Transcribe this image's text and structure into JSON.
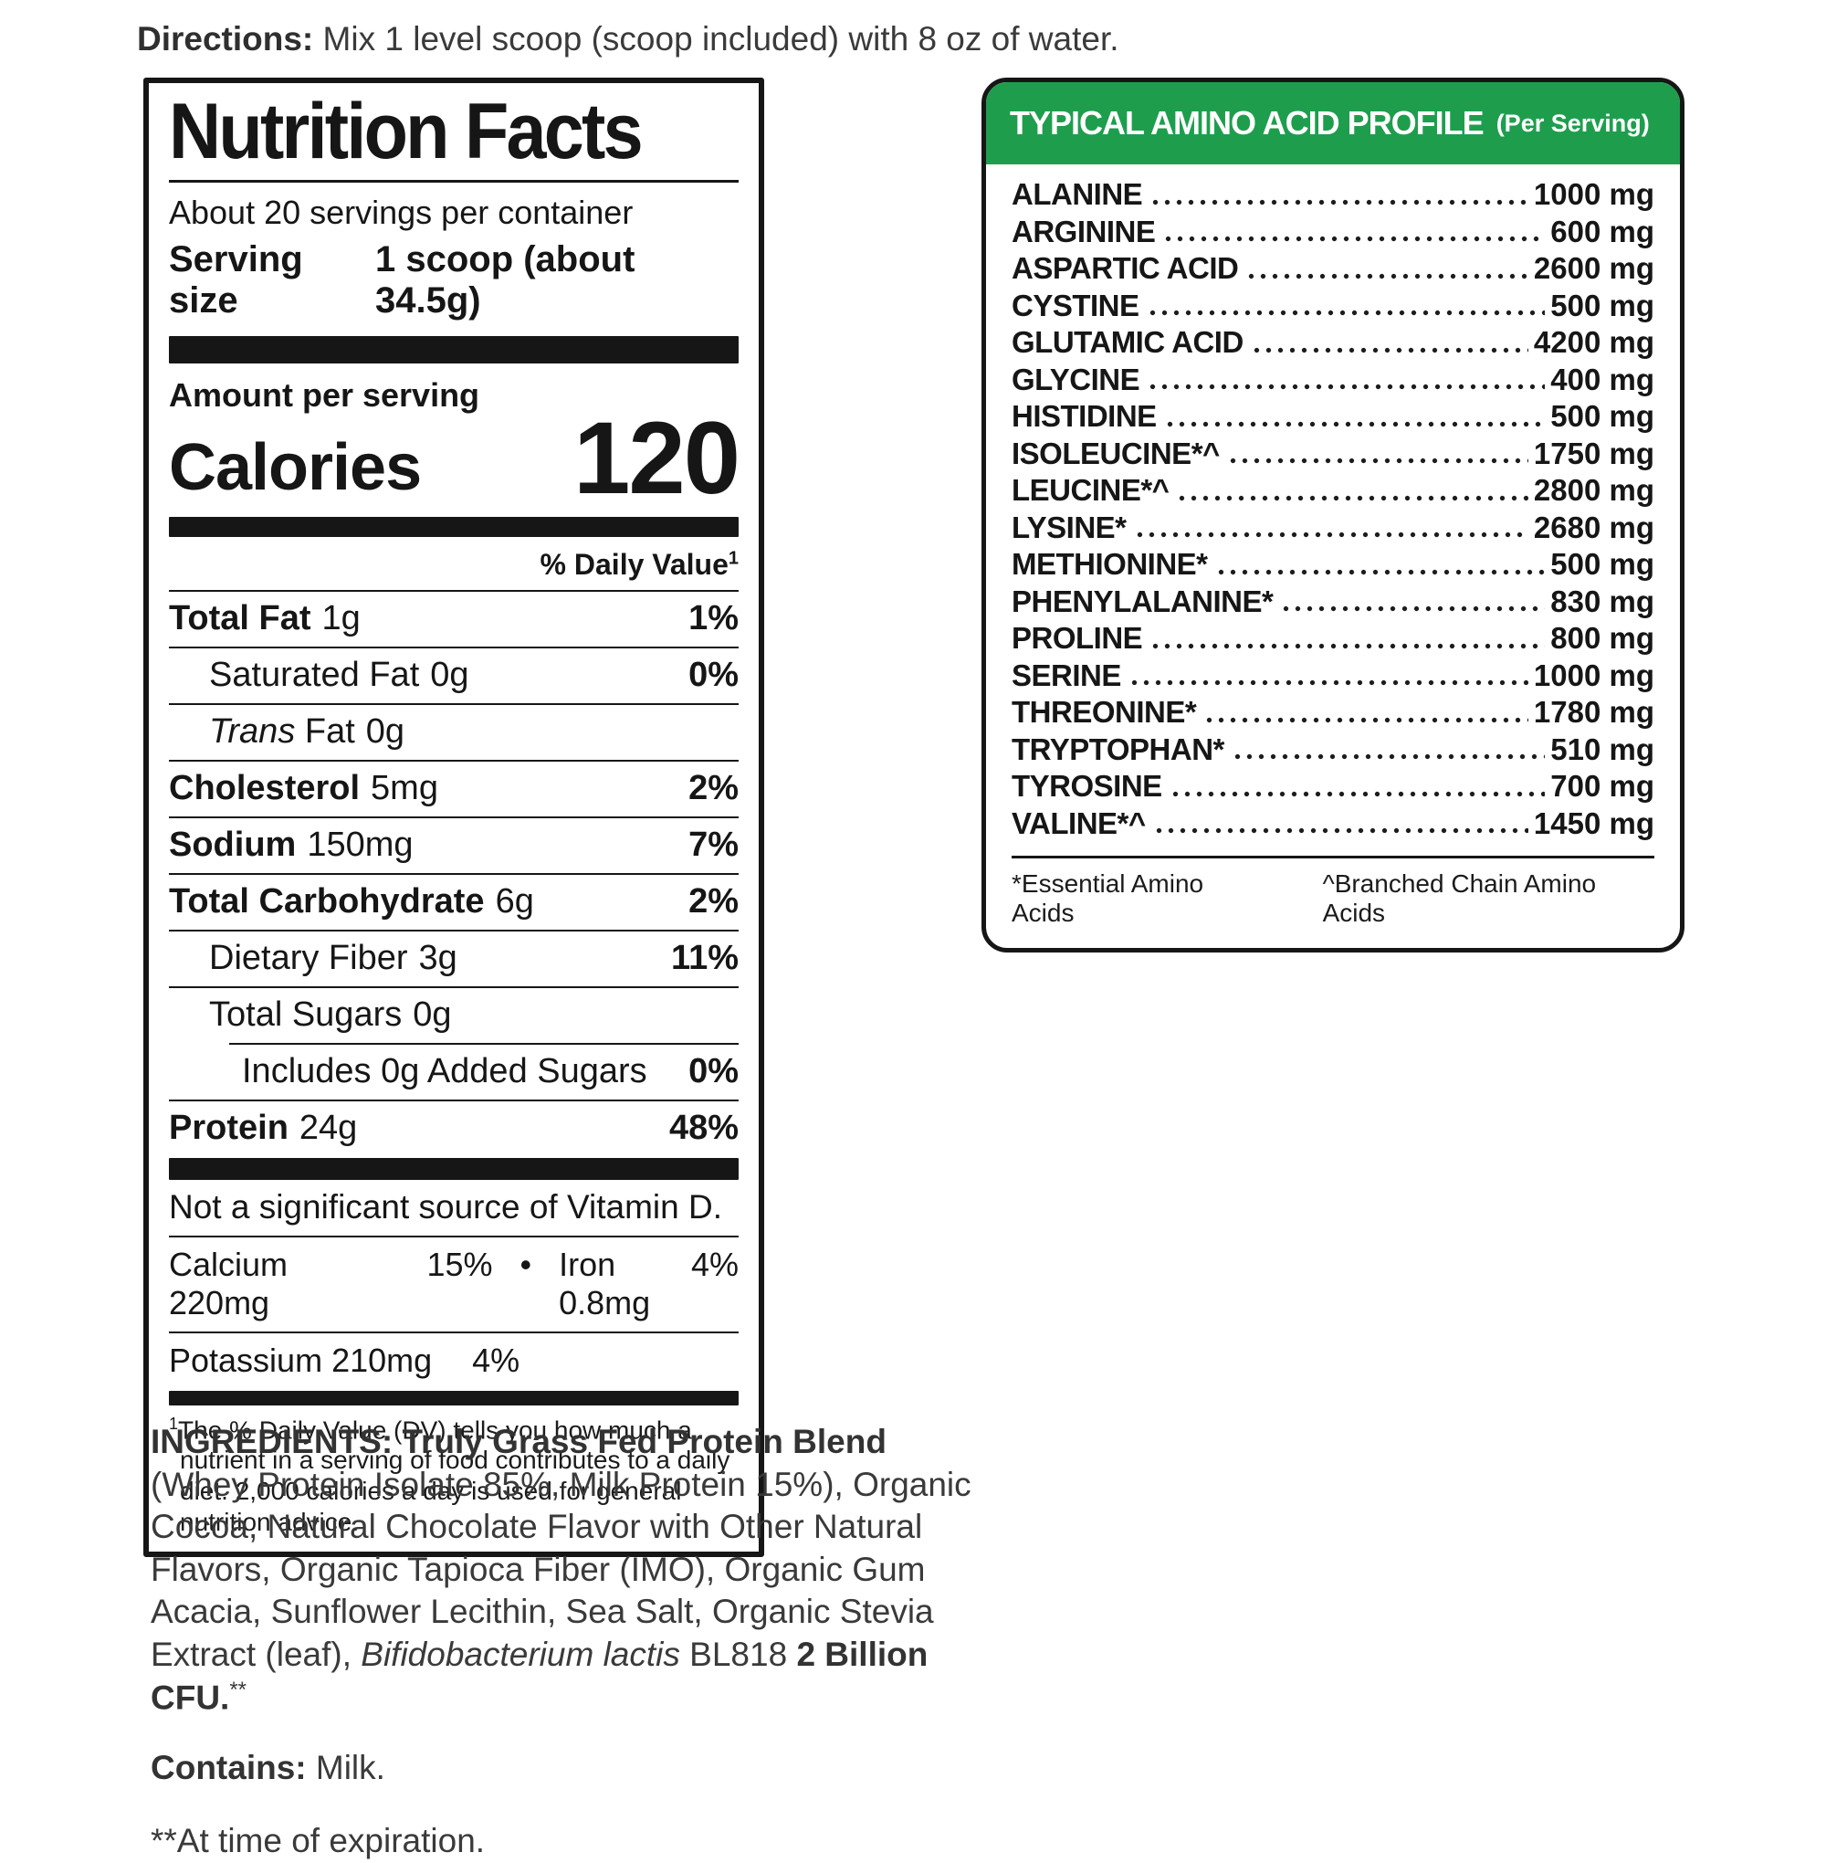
{
  "colors": {
    "header_green": "#1E9E4D",
    "ink": "#161616"
  },
  "directions": {
    "label": "Directions:",
    "text": " Mix 1 level scoop (scoop included) with 8 oz of water."
  },
  "nutrition": {
    "title": "Nutrition Facts",
    "servings_per_container": "About 20 servings per container",
    "serving_size_label": "Serving size",
    "serving_size_value": "1 scoop (about 34.5g)",
    "amount_per_serving": "Amount per serving",
    "calories_label": "Calories",
    "calories_value": "120",
    "daily_value_header": "% Daily Value",
    "daily_value_sup": "1",
    "total_fat": {
      "label": "Total Fat",
      "amount": "1g",
      "dv": "1%"
    },
    "saturated_fat": {
      "label": "Saturated Fat",
      "amount": "0g",
      "dv": "0%"
    },
    "trans_fat": {
      "label_italic": "Trans",
      "label_rest": " Fat",
      "amount": "0g"
    },
    "cholesterol": {
      "label": "Cholesterol",
      "amount": "5mg",
      "dv": "2%"
    },
    "sodium": {
      "label": "Sodium",
      "amount": "150mg",
      "dv": "7%"
    },
    "total_carbohydrate": {
      "label": "Total Carbohydrate",
      "amount": "6g",
      "dv": "2%"
    },
    "dietary_fiber": {
      "label": "Dietary Fiber",
      "amount": "3g",
      "dv": "11%"
    },
    "total_sugars": {
      "label": "Total Sugars",
      "amount": "0g"
    },
    "added_sugars": {
      "label": "Includes 0g Added Sugars",
      "dv": "0%"
    },
    "protein": {
      "label": "Protein",
      "amount": "24g",
      "dv": "48%"
    },
    "not_significant": "Not a significant source of Vitamin D.",
    "calcium": {
      "label": "Calcium 220mg",
      "dv": "15%"
    },
    "bullet": "•",
    "iron": {
      "label": "Iron 0.8mg",
      "dv": "4%"
    },
    "potassium": {
      "label": "Potassium 210mg",
      "dv": "4%"
    },
    "footnote_sup": "1",
    "footnote": "The % Daily Value (DV) tells you how much a nutrient in a serving of food contributes to a daily diet. 2,000 calories a day is used for general nutrition advice."
  },
  "amino": {
    "title": "TYPICAL AMINO ACID PROFILE",
    "subtitle": "(Per Serving)",
    "rows": [
      {
        "name": "ALANINE",
        "value": "1000 mg"
      },
      {
        "name": "ARGININE",
        "value": "600 mg"
      },
      {
        "name": "ASPARTIC ACID",
        "value": "2600 mg"
      },
      {
        "name": "CYSTINE",
        "value": "500 mg"
      },
      {
        "name": "GLUTAMIC ACID",
        "value": "4200 mg"
      },
      {
        "name": "GLYCINE",
        "value": "400 mg"
      },
      {
        "name": "HISTIDINE",
        "value": "500 mg"
      },
      {
        "name": "ISOLEUCINE*^",
        "value": "1750 mg"
      },
      {
        "name": "LEUCINE*^",
        "value": "2800 mg"
      },
      {
        "name": "LYSINE*",
        "value": "2680 mg"
      },
      {
        "name": "METHIONINE*",
        "value": "500 mg"
      },
      {
        "name": "PHENYLALANINE*",
        "value": "830 mg"
      },
      {
        "name": "PROLINE",
        "value": "800 mg"
      },
      {
        "name": "SERINE",
        "value": "1000 mg"
      },
      {
        "name": "THREONINE*",
        "value": "1780 mg"
      },
      {
        "name": "TRYPTOPHAN*",
        "value": "510 mg"
      },
      {
        "name": "TYROSINE",
        "value": "700 mg"
      },
      {
        "name": "VALINE*^",
        "value": "1450 mg"
      }
    ],
    "footnote_left": "*Essential Amino Acids",
    "footnote_right": "^Branched Chain Amino Acids"
  },
  "ingredients": {
    "lead": "INGREDIENTS: Truly Grass Fed Protein Blend",
    "body": " (Whey Protein Isolate 85%, Milk Protein 15%), Organic Cocoa, Natural Chocolate Flavor with Other Natural Flavors, Organic Tapioca Fiber (IMO), Organic Gum Acacia, Sunflower Lecithin, Sea Salt, Organic Stevia Extract (leaf), ",
    "italic": "Bifidobacterium lactis",
    "mid": " BL818 ",
    "bold_end": "2 Billion CFU.",
    "sup": "**",
    "contains_label": "Contains:",
    "contains_value": " Milk.",
    "expiration_note": "**At time of expiration."
  }
}
